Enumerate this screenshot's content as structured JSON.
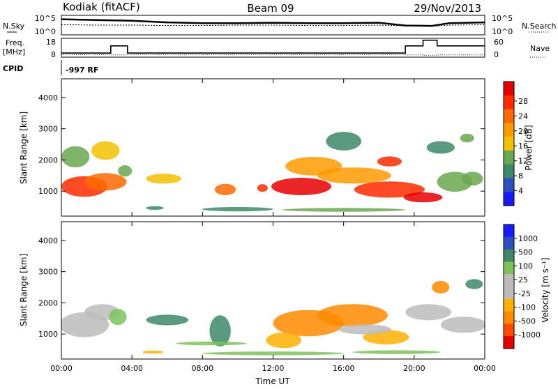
{
  "header": {
    "station": "Kodiak (fitACF)",
    "beam": "Beam 09",
    "date": "29/Nov/2013"
  },
  "panels": {
    "nsky_label": "N.Sky",
    "nsearch_label": "N.Search",
    "freq_label_line1": "Freq.",
    "freq_label_line2": "[MHz]",
    "nave_label": "Nave",
    "cpid_label": "CPID",
    "cpid_value": "-997 RF"
  },
  "colors": {
    "power_scale": [
      "#1a1aff",
      "#2d4fbf",
      "#3d8a6a",
      "#6aa84f",
      "#f2c200",
      "#ff9a00",
      "#ff6a00",
      "#ff2a00",
      "#e60000"
    ],
    "velocity_scale": [
      "#e60000",
      "#ff4a00",
      "#ff8a00",
      "#ffb000",
      "#bcbcbc",
      "#bcbcbc",
      "#7cc35a",
      "#3d8a6a",
      "#2d4fbf",
      "#1a1aff"
    ]
  },
  "chart_data": [
    {
      "type": "line",
      "name": "noise-panel",
      "ylabel_left": "N.Sky",
      "ylabel_right": "N.Search",
      "yticks_left": [
        "10^5",
        "10^0"
      ],
      "yticks_right": [
        "10^5",
        "10^0"
      ],
      "x": [
        0,
        2,
        4,
        6,
        8,
        10,
        12,
        14,
        16,
        18,
        19.5,
        21,
        22,
        24
      ],
      "series": [
        {
          "values": [
            4.0,
            3.8,
            3.6,
            3.2,
            3.0,
            3.0,
            3.1,
            3.0,
            3.0,
            3.1,
            2.4,
            2.3,
            3.0,
            3.2
          ]
        },
        {
          "values": [
            2.6,
            2.5,
            2.5,
            2.4,
            2.4,
            2.5,
            2.5,
            2.4,
            2.4,
            2.5,
            2.3,
            2.2,
            2.5,
            2.6
          ]
        }
      ]
    },
    {
      "type": "line",
      "name": "frequency-panel",
      "ylabel_left": "Freq. [MHz]",
      "ylabel_right": "Nave",
      "yticks_left": [
        "18",
        "8"
      ],
      "yticks_right": [
        "60",
        "0"
      ],
      "x": [
        0,
        2.6,
        2.8,
        3.7,
        3.75,
        19.2,
        19.5,
        20.5,
        21.3,
        22.5,
        24
      ],
      "series": [
        {
          "values": [
            10.2,
            10.2,
            14.0,
            14.0,
            10.2,
            10.2,
            14.0,
            17.0,
            14.0,
            14.0,
            14.0
          ]
        },
        {
          "values": [
            9.4,
            9.4,
            9.2,
            9.2,
            9.4,
            9.4,
            9.2,
            9.0,
            9.2,
            9.2,
            9.4
          ]
        }
      ]
    },
    {
      "type": "heatmap",
      "name": "power-panel",
      "xlabel": "",
      "ylabel": "Slant Range [km]",
      "yticks": [
        "1000",
        "2000",
        "3000",
        "4000"
      ],
      "ylim": [
        200,
        4600
      ],
      "colorbar_label": "Power [dB]",
      "colorbar_ticks": [
        "4",
        "8",
        "12",
        "16",
        "20",
        "24",
        "28"
      ],
      "blobs": [
        {
          "t": 1.3,
          "r": 1150,
          "w": 1.3,
          "h": 330,
          "level": 7
        },
        {
          "t": 2.5,
          "r": 1300,
          "w": 1.2,
          "h": 280,
          "level": 6
        },
        {
          "t": 0.8,
          "r": 2100,
          "w": 0.8,
          "h": 340,
          "level": 3
        },
        {
          "t": 2.5,
          "r": 2300,
          "w": 0.8,
          "h": 300,
          "level": 4
        },
        {
          "t": 3.6,
          "r": 1650,
          "w": 0.4,
          "h": 180,
          "level": 3
        },
        {
          "t": 5.8,
          "r": 1400,
          "w": 1.0,
          "h": 160,
          "level": 4
        },
        {
          "t": 9.3,
          "r": 1050,
          "w": 0.6,
          "h": 180,
          "level": 6
        },
        {
          "t": 11.4,
          "r": 1100,
          "w": 0.3,
          "h": 120,
          "level": 7
        },
        {
          "t": 13.6,
          "r": 1150,
          "w": 1.7,
          "h": 280,
          "level": 8
        },
        {
          "t": 14.3,
          "r": 1800,
          "w": 1.6,
          "h": 300,
          "level": 5
        },
        {
          "t": 16.6,
          "r": 1500,
          "w": 2.1,
          "h": 260,
          "level": 5
        },
        {
          "t": 18.6,
          "r": 1050,
          "w": 2.0,
          "h": 260,
          "level": 7
        },
        {
          "t": 20.5,
          "r": 800,
          "w": 1.1,
          "h": 160,
          "level": 8
        },
        {
          "t": 18.6,
          "r": 1950,
          "w": 0.7,
          "h": 160,
          "level": 7
        },
        {
          "t": 22.3,
          "r": 1300,
          "w": 1.0,
          "h": 320,
          "level": 3
        },
        {
          "t": 23.3,
          "r": 1400,
          "w": 0.6,
          "h": 220,
          "level": 3
        },
        {
          "t": 21.5,
          "r": 2400,
          "w": 0.8,
          "h": 200,
          "level": 2
        },
        {
          "t": 23.0,
          "r": 2700,
          "w": 0.4,
          "h": 140,
          "level": 3
        },
        {
          "t": 16.0,
          "r": 2600,
          "w": 1.0,
          "h": 300,
          "level": 2
        },
        {
          "t": 5.3,
          "r": 460,
          "w": 0.5,
          "h": 60,
          "level": 2
        },
        {
          "t": 10.0,
          "r": 420,
          "w": 2.0,
          "h": 70,
          "level": 2
        },
        {
          "t": 16.0,
          "r": 400,
          "w": 3.5,
          "h": 60,
          "level": 3
        }
      ]
    },
    {
      "type": "heatmap",
      "name": "velocity-panel",
      "xlabel": "Time UT",
      "ylabel": "Slant Range [km]",
      "xticks": [
        "00:00",
        "04:00",
        "08:00",
        "12:00",
        "16:00",
        "20:00",
        "00:00"
      ],
      "yticks": [
        "1000",
        "2000",
        "3000",
        "4000"
      ],
      "ylim": [
        200,
        4600
      ],
      "colorbar_label": "Velocity [m s⁻¹]",
      "colorbar_ticks": [
        "1000",
        "500",
        "100",
        "25",
        "-25",
        "-100",
        "-500",
        "-1000"
      ],
      "blobs": [
        {
          "t": 1.3,
          "r": 1300,
          "w": 1.4,
          "h": 400,
          "level": 4
        },
        {
          "t": 2.3,
          "r": 1700,
          "w": 1.0,
          "h": 260,
          "level": 4
        },
        {
          "t": 3.2,
          "r": 1550,
          "w": 0.5,
          "h": 260,
          "level": 6
        },
        {
          "t": 6.0,
          "r": 1450,
          "w": 1.2,
          "h": 170,
          "level": 7
        },
        {
          "t": 9.0,
          "r": 1100,
          "w": 0.6,
          "h": 500,
          "level": 7
        },
        {
          "t": 8.5,
          "r": 700,
          "w": 2.0,
          "h": 60,
          "level": 6
        },
        {
          "t": 14.0,
          "r": 1350,
          "w": 2.0,
          "h": 420,
          "level": 2
        },
        {
          "t": 16.5,
          "r": 1600,
          "w": 2.0,
          "h": 360,
          "level": 2
        },
        {
          "t": 12.6,
          "r": 800,
          "w": 1.0,
          "h": 250,
          "level": 3
        },
        {
          "t": 18.4,
          "r": 900,
          "w": 1.3,
          "h": 230,
          "level": 3
        },
        {
          "t": 17.2,
          "r": 1150,
          "w": 1.5,
          "h": 160,
          "level": 4
        },
        {
          "t": 20.8,
          "r": 1700,
          "w": 1.3,
          "h": 260,
          "level": 4
        },
        {
          "t": 22.8,
          "r": 1300,
          "w": 1.3,
          "h": 260,
          "level": 4
        },
        {
          "t": 23.4,
          "r": 2600,
          "w": 0.5,
          "h": 160,
          "level": 7
        },
        {
          "t": 21.5,
          "r": 2500,
          "w": 0.5,
          "h": 200,
          "level": 2
        },
        {
          "t": 5.2,
          "r": 420,
          "w": 0.6,
          "h": 50,
          "level": 3
        },
        {
          "t": 12.0,
          "r": 380,
          "w": 4.0,
          "h": 60,
          "level": 6
        },
        {
          "t": 19.0,
          "r": 420,
          "w": 2.5,
          "h": 60,
          "level": 6
        }
      ]
    }
  ]
}
